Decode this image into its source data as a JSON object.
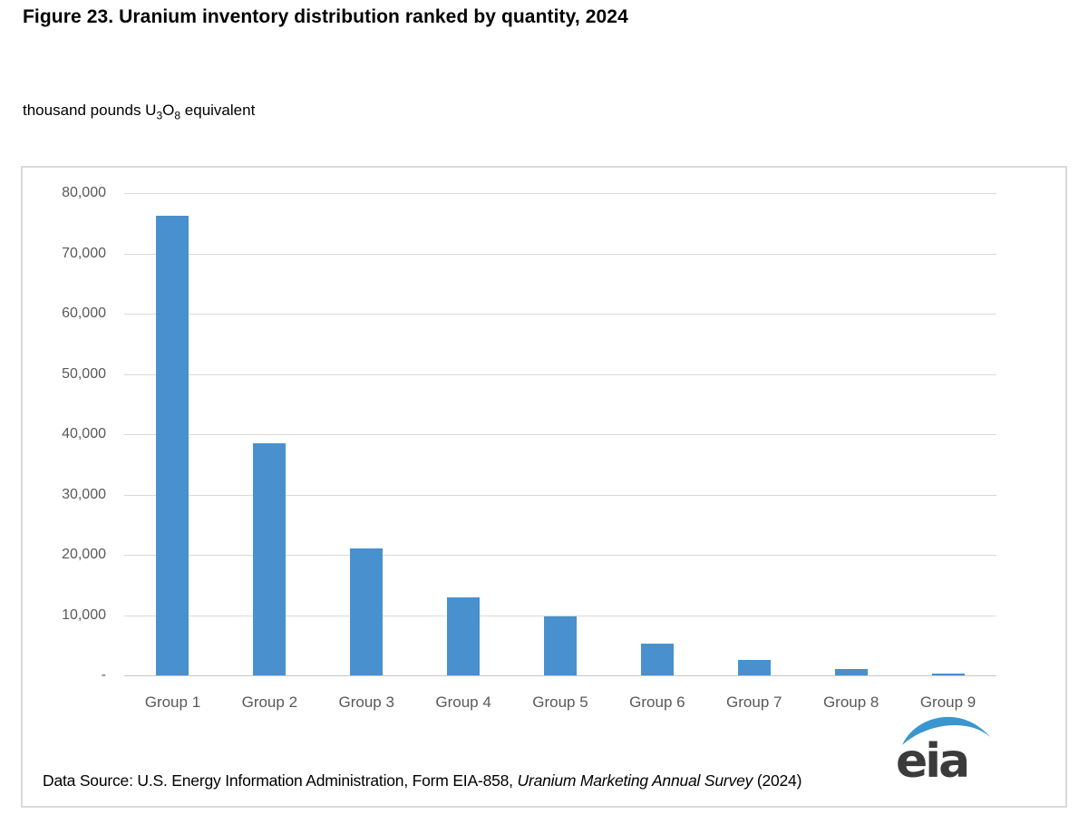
{
  "figure": {
    "title": "Figure 23. Uranium inventory distribution ranked by quantity, 2024",
    "unit_label_parts": {
      "prefix": "thousand pounds U",
      "sub_3": "3",
      "element_o": "O",
      "sub_8": "8",
      "suffix": " equivalent"
    }
  },
  "chart_data": {
    "type": "bar",
    "title": "Figure 23. Uranium inventory distribution ranked by quantity, 2024",
    "ylabel": "thousand pounds U3O8 equivalent",
    "xlabel": "",
    "categories": [
      "Group 1",
      "Group 2",
      "Group 3",
      "Group 4",
      "Group 5",
      "Group 6",
      "Group 7",
      "Group 8",
      "Group 9"
    ],
    "values": [
      76200,
      38500,
      21100,
      13000,
      9700,
      5300,
      2500,
      1000,
      250
    ],
    "ylim": [
      0,
      80000
    ],
    "ytick_interval": 10000,
    "ytick_labels": [
      "80,000",
      "70,000",
      "60,000",
      "50,000",
      "40,000",
      "30,000",
      "20,000",
      "10,000",
      "-"
    ],
    "grid": true,
    "legend": "none",
    "bar_color": "#4890ce"
  },
  "footer": {
    "source_prefix": "Data Source: U.S. Energy Information Administration, Form EIA-858, ",
    "source_italic": "Uranium Marketing Annual Survey",
    "source_suffix": " (2024)",
    "logo_text": "eia"
  },
  "colors": {
    "bar": "#4890ce",
    "gridline": "#d9d9d9",
    "baseline": "#c6c6c6",
    "axis_text": "#595959",
    "border": "#d9d9d9",
    "logo_gray": "#3b3b3b",
    "logo_blue": "#3a96cf"
  }
}
